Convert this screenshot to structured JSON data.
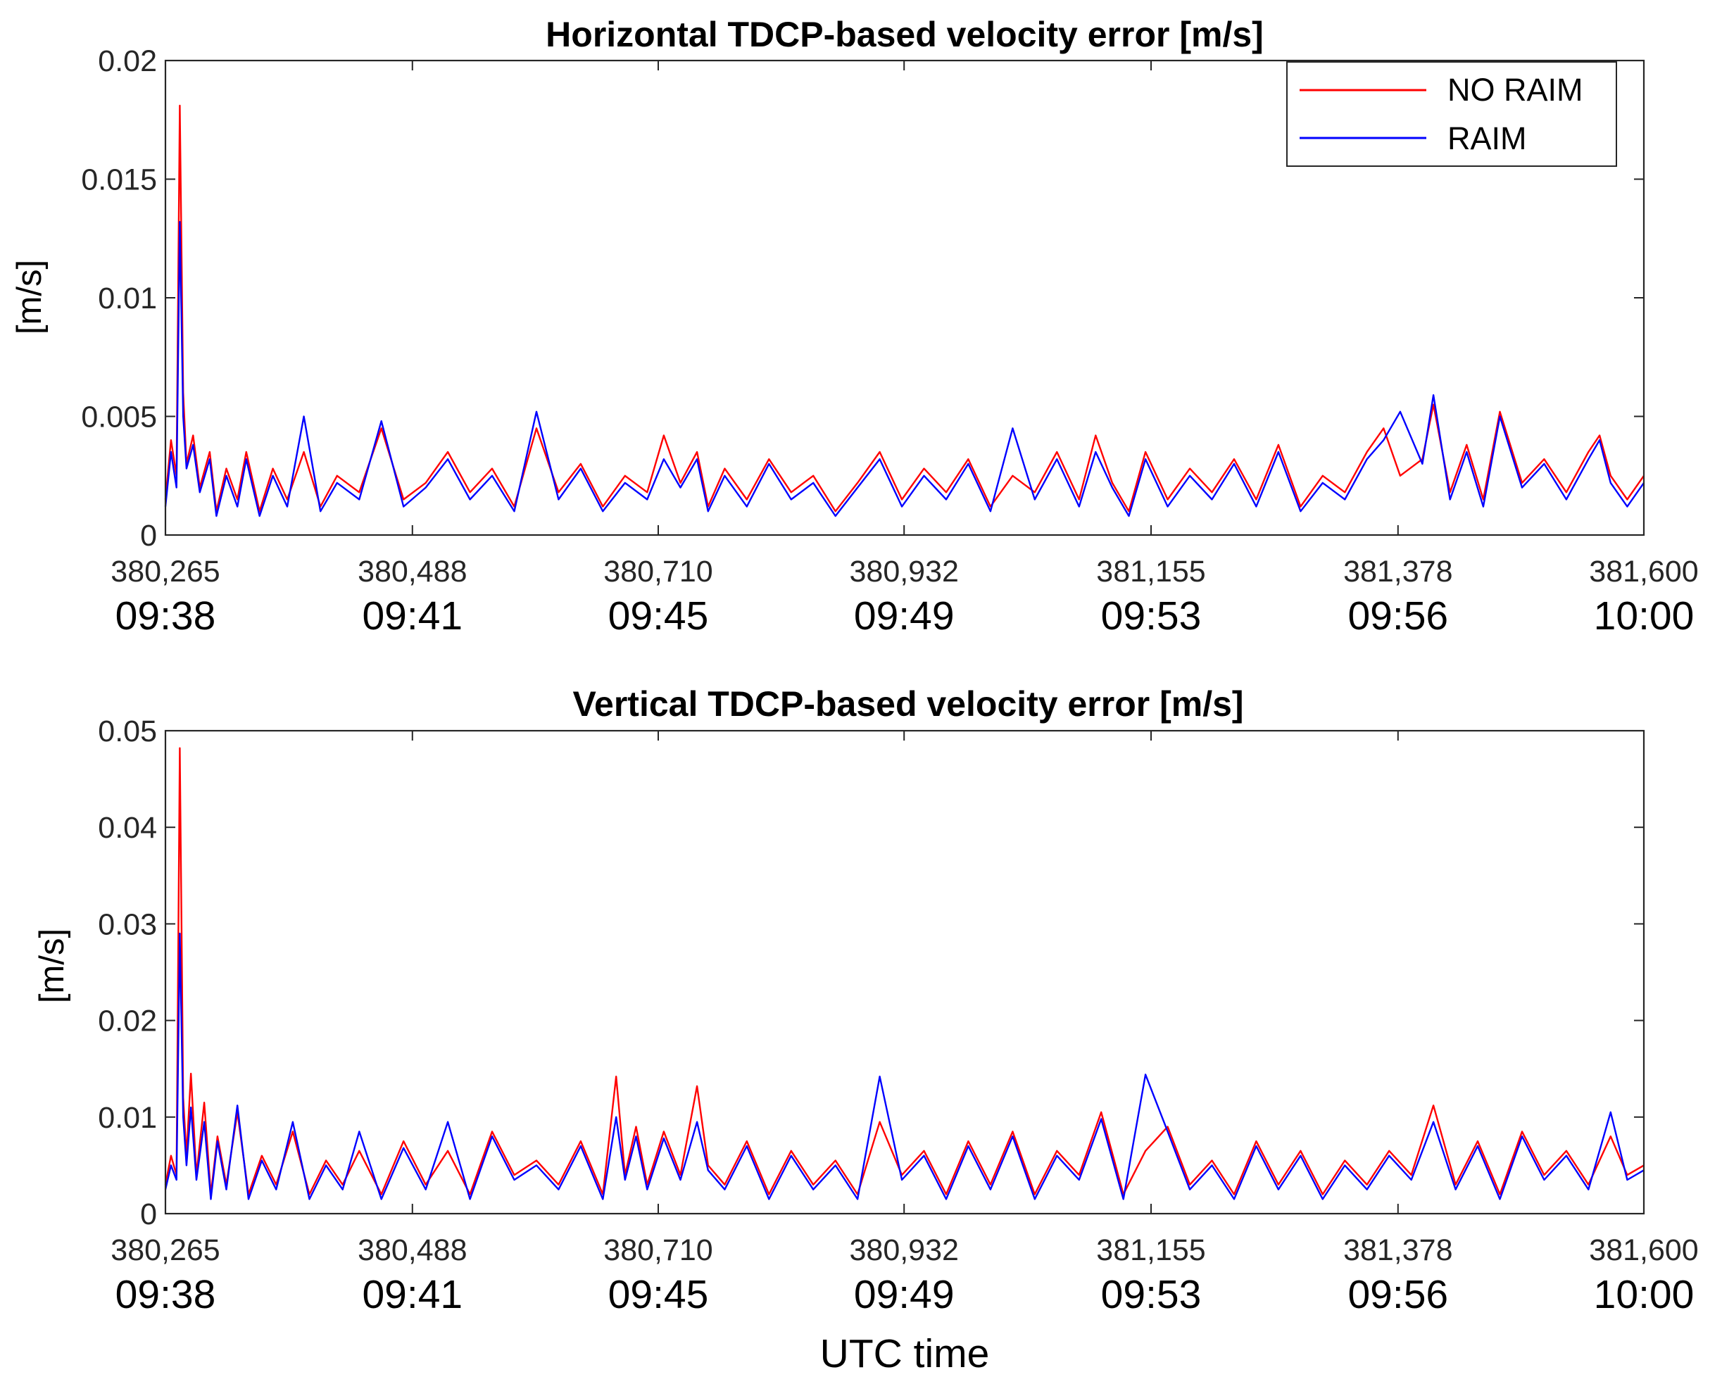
{
  "chart_data": [
    {
      "type": "line",
      "title": "Horizontal TDCP-based velocity error [m/s]",
      "xlabel": "",
      "ylabel": "[m/s]",
      "xlim": [
        380265,
        381600
      ],
      "ylim": [
        0,
        0.02
      ],
      "yticks": [
        "0",
        "0.005",
        "0.01",
        "0.015",
        "0.02"
      ],
      "yticks_values": [
        0,
        0.005,
        0.01,
        0.015,
        0.02
      ],
      "xticks_values": [
        380265,
        380488,
        380710,
        380932,
        381155,
        381378,
        381600
      ],
      "xticks_gps": [
        "380,265",
        "380,488",
        "380,710",
        "380,932",
        "381,155",
        "381,378",
        "381,600"
      ],
      "xticks_utc": [
        "09:38",
        "09:41",
        "09:45",
        "09:49",
        "09:53",
        "09:56",
        "10:00"
      ],
      "legend": {
        "location": "top-right",
        "entries": [
          "NO RAIM",
          "RAIM"
        ]
      },
      "colors": {
        "NO RAIM": "#ff0000",
        "RAIM": "#0000ff"
      },
      "series": [
        {
          "name": "NO RAIM",
          "x": [
            380265,
            380270,
            380275,
            380278,
            380281,
            380284,
            380290,
            380296,
            380305,
            380311,
            380320,
            380330,
            380338,
            380350,
            380362,
            380375,
            380390,
            380405,
            380420,
            380440,
            380460,
            380480,
            380500,
            380520,
            380540,
            380560,
            380580,
            380600,
            380620,
            380640,
            380660,
            380680,
            380700,
            380715,
            380730,
            380745,
            380755,
            380770,
            380790,
            380810,
            380830,
            380850,
            380870,
            380890,
            380910,
            380930,
            380950,
            380970,
            380990,
            381010,
            381030,
            381050,
            381070,
            381090,
            381105,
            381120,
            381135,
            381150,
            381170,
            381190,
            381210,
            381230,
            381250,
            381270,
            381290,
            381310,
            381330,
            381350,
            381365,
            381380,
            381400,
            381410,
            381425,
            381440,
            381455,
            381470,
            381490,
            381510,
            381530,
            381550,
            381560,
            381570,
            381585,
            381600
          ],
          "y": [
            0.0015,
            0.004,
            0.0025,
            0.0181,
            0.006,
            0.003,
            0.0042,
            0.002,
            0.0035,
            0.001,
            0.0028,
            0.0015,
            0.0035,
            0.001,
            0.0028,
            0.0015,
            0.0035,
            0.0012,
            0.0025,
            0.0018,
            0.0045,
            0.0015,
            0.0022,
            0.0035,
            0.0018,
            0.0028,
            0.0012,
            0.0045,
            0.0018,
            0.003,
            0.0012,
            0.0025,
            0.0018,
            0.0042,
            0.0022,
            0.0035,
            0.0012,
            0.0028,
            0.0015,
            0.0032,
            0.0018,
            0.0025,
            0.001,
            0.0022,
            0.0035,
            0.0015,
            0.0028,
            0.0018,
            0.0032,
            0.0012,
            0.0025,
            0.0018,
            0.0035,
            0.0015,
            0.0042,
            0.0022,
            0.001,
            0.0035,
            0.0015,
            0.0028,
            0.0018,
            0.0032,
            0.0015,
            0.0038,
            0.0012,
            0.0025,
            0.0018,
            0.0035,
            0.0045,
            0.0025,
            0.0032,
            0.0055,
            0.0018,
            0.0038,
            0.0015,
            0.0052,
            0.0022,
            0.0032,
            0.0018,
            0.0035,
            0.0042,
            0.0025,
            0.0015,
            0.0025
          ]
        },
        {
          "name": "RAIM",
          "x": [
            380265,
            380270,
            380275,
            380278,
            380281,
            380284,
            380290,
            380296,
            380305,
            380311,
            380320,
            380330,
            380338,
            380350,
            380362,
            380375,
            380390,
            380405,
            380420,
            380440,
            380460,
            380480,
            380500,
            380520,
            380540,
            380560,
            380580,
            380600,
            380620,
            380640,
            380660,
            380680,
            380700,
            380715,
            380730,
            380745,
            380755,
            380770,
            380790,
            380810,
            380830,
            380850,
            380870,
            380890,
            380910,
            380930,
            380950,
            380970,
            380990,
            381010,
            381030,
            381050,
            381070,
            381090,
            381105,
            381120,
            381135,
            381150,
            381170,
            381190,
            381210,
            381230,
            381250,
            381270,
            381290,
            381310,
            381330,
            381350,
            381365,
            381380,
            381400,
            381410,
            381425,
            381440,
            381455,
            381470,
            381490,
            381510,
            381530,
            381550,
            381560,
            381570,
            381585,
            381600
          ],
          "y": [
            0.0012,
            0.0035,
            0.002,
            0.0132,
            0.005,
            0.0028,
            0.0038,
            0.0018,
            0.0032,
            0.0008,
            0.0025,
            0.0012,
            0.0032,
            0.0008,
            0.0025,
            0.0012,
            0.005,
            0.001,
            0.0022,
            0.0015,
            0.0048,
            0.0012,
            0.002,
            0.0032,
            0.0015,
            0.0025,
            0.001,
            0.0052,
            0.0015,
            0.0028,
            0.001,
            0.0022,
            0.0015,
            0.0032,
            0.002,
            0.0032,
            0.001,
            0.0025,
            0.0012,
            0.003,
            0.0015,
            0.0022,
            0.0008,
            0.002,
            0.0032,
            0.0012,
            0.0025,
            0.0015,
            0.003,
            0.001,
            0.0045,
            0.0015,
            0.0032,
            0.0012,
            0.0035,
            0.002,
            0.0008,
            0.0032,
            0.0012,
            0.0025,
            0.0015,
            0.003,
            0.0012,
            0.0035,
            0.001,
            0.0022,
            0.0015,
            0.0032,
            0.004,
            0.0052,
            0.003,
            0.0059,
            0.0015,
            0.0035,
            0.0012,
            0.005,
            0.002,
            0.003,
            0.0015,
            0.0032,
            0.004,
            0.0022,
            0.0012,
            0.0022
          ]
        }
      ]
    },
    {
      "type": "line",
      "title": "Vertical TDCP-based velocity error [m/s]",
      "xlabel": "UTC time",
      "ylabel": "[m/s]",
      "xlim": [
        380265,
        381600
      ],
      "ylim": [
        0,
        0.05
      ],
      "yticks": [
        "0",
        "0.01",
        "0.02",
        "0.03",
        "0.04",
        "0.05"
      ],
      "yticks_values": [
        0,
        0.01,
        0.02,
        0.03,
        0.04,
        0.05
      ],
      "xticks_values": [
        380265,
        380488,
        380710,
        380932,
        381155,
        381378,
        381600
      ],
      "xticks_gps": [
        "380,265",
        "380,488",
        "380,710",
        "380,932",
        "381,155",
        "381,378",
        "381,600"
      ],
      "xticks_utc": [
        "09:38",
        "09:41",
        "09:45",
        "09:49",
        "09:53",
        "09:56",
        "10:00"
      ],
      "legend": {
        "location": "none",
        "entries": []
      },
      "colors": {
        "NO RAIM": "#ff0000",
        "RAIM": "#0000ff"
      },
      "series": [
        {
          "name": "NO RAIM",
          "x": [
            380265,
            380270,
            380275,
            380278,
            380281,
            380284,
            380288,
            380293,
            380300,
            380306,
            380312,
            380320,
            380330,
            380340,
            380352,
            380365,
            380380,
            380395,
            380410,
            380425,
            380440,
            380460,
            380480,
            380500,
            380520,
            380540,
            380560,
            380580,
            380600,
            380620,
            380640,
            380660,
            380672,
            380680,
            380690,
            380700,
            380715,
            380730,
            380745,
            380755,
            380770,
            380790,
            380810,
            380830,
            380850,
            380870,
            380890,
            380910,
            380930,
            380950,
            380970,
            380990,
            381010,
            381030,
            381050,
            381070,
            381090,
            381110,
            381130,
            381150,
            381170,
            381190,
            381210,
            381230,
            381250,
            381270,
            381290,
            381310,
            381330,
            381350,
            381370,
            381390,
            381410,
            381430,
            381450,
            381470,
            381490,
            381510,
            381530,
            381550,
            381570,
            381585,
            381600
          ],
          "y": [
            0.003,
            0.006,
            0.004,
            0.0482,
            0.012,
            0.006,
            0.0145,
            0.004,
            0.0115,
            0.002,
            0.008,
            0.003,
            0.0105,
            0.002,
            0.006,
            0.003,
            0.0085,
            0.002,
            0.0055,
            0.003,
            0.0065,
            0.002,
            0.0075,
            0.003,
            0.0065,
            0.002,
            0.0085,
            0.004,
            0.0055,
            0.003,
            0.0075,
            0.002,
            0.0142,
            0.004,
            0.009,
            0.003,
            0.0085,
            0.004,
            0.0132,
            0.005,
            0.003,
            0.0075,
            0.002,
            0.0065,
            0.003,
            0.0055,
            0.002,
            0.0095,
            0.004,
            0.0065,
            0.002,
            0.0075,
            0.003,
            0.0085,
            0.002,
            0.0065,
            0.004,
            0.0105,
            0.002,
            0.0065,
            0.009,
            0.003,
            0.0055,
            0.002,
            0.0075,
            0.003,
            0.0065,
            0.002,
            0.0055,
            0.003,
            0.0065,
            0.004,
            0.0112,
            0.003,
            0.0075,
            0.002,
            0.0085,
            0.004,
            0.0065,
            0.003,
            0.008,
            0.004,
            0.005
          ]
        },
        {
          "name": "RAIM",
          "x": [
            380265,
            380270,
            380275,
            380278,
            380281,
            380284,
            380288,
            380293,
            380300,
            380306,
            380312,
            380320,
            380330,
            380340,
            380352,
            380365,
            380380,
            380395,
            380410,
            380425,
            380440,
            380460,
            380480,
            380500,
            380520,
            380540,
            380560,
            380580,
            380600,
            380620,
            380640,
            380660,
            380672,
            380680,
            380690,
            380700,
            380715,
            380730,
            380745,
            380755,
            380770,
            380790,
            380810,
            380830,
            380850,
            380870,
            380890,
            380910,
            380930,
            380950,
            380970,
            380990,
            381010,
            381030,
            381050,
            381070,
            381090,
            381110,
            381130,
            381150,
            381170,
            381190,
            381210,
            381230,
            381250,
            381270,
            381290,
            381310,
            381330,
            381350,
            381370,
            381390,
            381410,
            381430,
            381450,
            381470,
            381490,
            381510,
            381530,
            381550,
            381570,
            381585,
            381600
          ],
          "y": [
            0.0025,
            0.005,
            0.0035,
            0.029,
            0.01,
            0.005,
            0.011,
            0.0035,
            0.0095,
            0.0015,
            0.0075,
            0.0025,
            0.0112,
            0.0015,
            0.0055,
            0.0025,
            0.0095,
            0.0015,
            0.005,
            0.0025,
            0.0085,
            0.0015,
            0.0068,
            0.0025,
            0.0095,
            0.0015,
            0.008,
            0.0035,
            0.005,
            0.0025,
            0.007,
            0.0015,
            0.01,
            0.0035,
            0.008,
            0.0025,
            0.0078,
            0.0035,
            0.0095,
            0.0045,
            0.0025,
            0.007,
            0.0015,
            0.006,
            0.0025,
            0.005,
            0.0015,
            0.0142,
            0.0035,
            0.006,
            0.0015,
            0.007,
            0.0025,
            0.008,
            0.0015,
            0.006,
            0.0035,
            0.0098,
            0.0015,
            0.0144,
            0.0085,
            0.0025,
            0.005,
            0.0015,
            0.007,
            0.0025,
            0.006,
            0.0015,
            0.005,
            0.0025,
            0.006,
            0.0035,
            0.0095,
            0.0025,
            0.007,
            0.0015,
            0.008,
            0.0035,
            0.006,
            0.0025,
            0.0105,
            0.0035,
            0.0045
          ]
        }
      ]
    }
  ]
}
